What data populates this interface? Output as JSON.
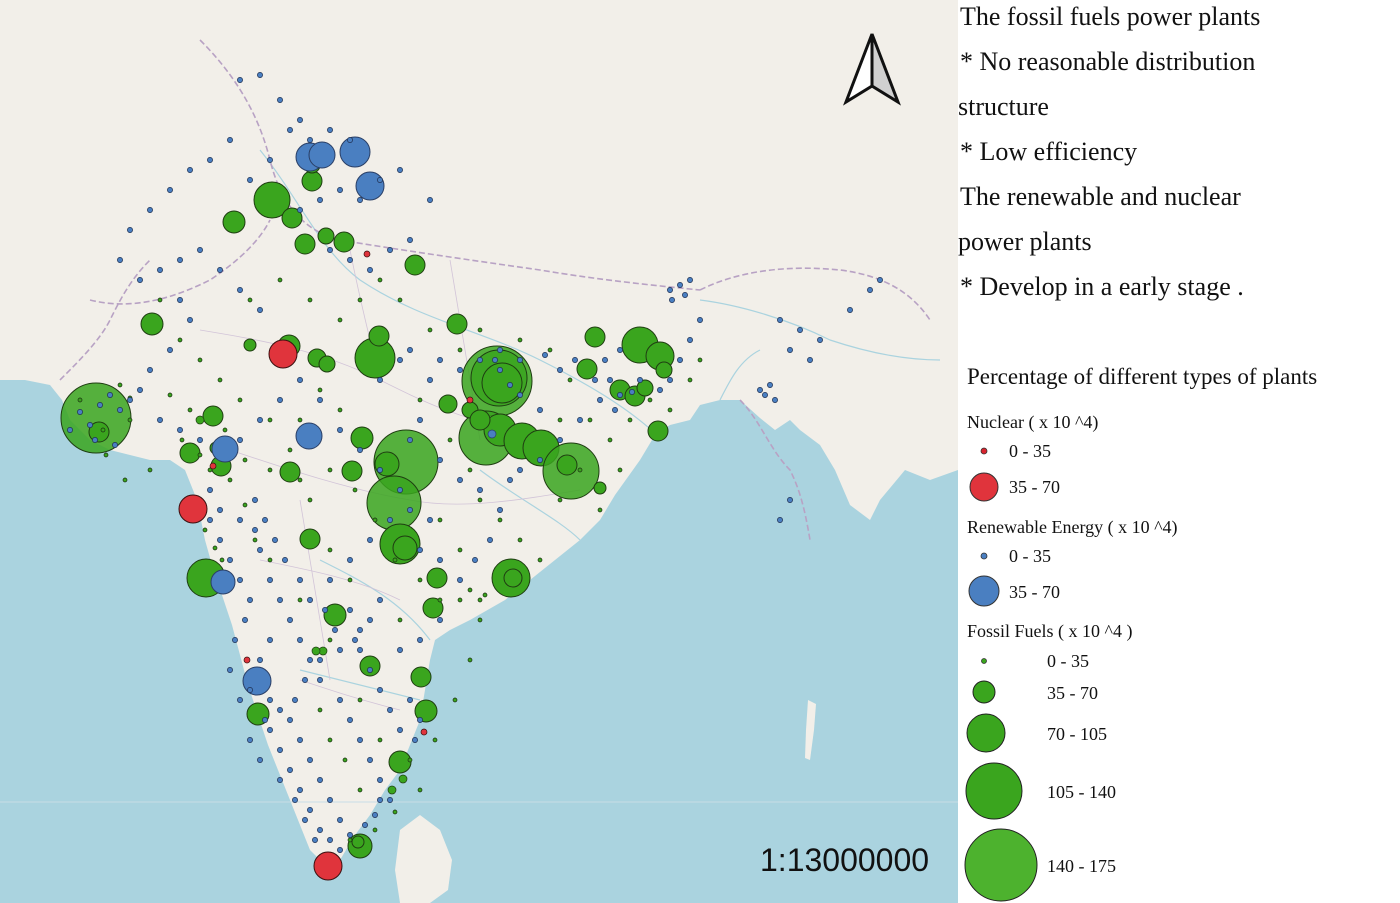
{
  "notes": {
    "fossil_heading": "The fossil fuels power plants",
    "fossil_point1_line1": "* No reasonable distribution",
    "fossil_point1_line2": "structure",
    "fossil_point2": "* Low efficiency",
    "renewable_heading_line1": "The renewable and nuclear",
    "renewable_heading_line2": "power plants",
    "renewable_point": "* Develop in a early stage ."
  },
  "legend": {
    "title": "Percentage of different types of plants",
    "groups": [
      {
        "name": "Nuclear ( x 10 ^4)",
        "color": "#d9232e",
        "classes": [
          "0 - 35",
          "35 - 70"
        ]
      },
      {
        "name": "Renewable Energy ( x 10 ^4)",
        "color": "#4a7fc1",
        "classes": [
          "0 - 35",
          "35 - 70"
        ]
      },
      {
        "name": "Fossil Fuels ( x 10 ^4 )",
        "color": "#3aa51e",
        "classes": [
          "0 - 35",
          "35 - 70",
          "70 - 105",
          "105 - 140",
          "140 - 175"
        ]
      }
    ]
  },
  "scale": "1:13000000",
  "north_arrow": "north-arrow-icon",
  "colors": {
    "water": "#aad3df",
    "land": "#f2efe9",
    "border": "#b8a2c4",
    "nuclear": "#d9232e",
    "renewable": "#4a7fc1",
    "fossil": "#3aa51e"
  }
}
